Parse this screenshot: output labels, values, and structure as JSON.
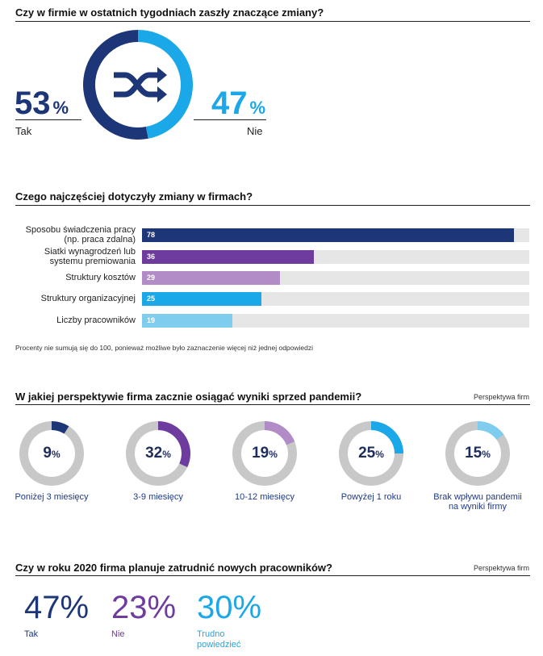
{
  "section1": {
    "title": "Czy w firmie w ostatnich tygodniach zaszły znaczące zmiany?",
    "left": {
      "value": "53",
      "unit": "%",
      "label": "Tak"
    },
    "right": {
      "value": "47",
      "unit": "%",
      "label": "Nie"
    },
    "icon": "shuffle-icon",
    "colors": {
      "dark": "#1c3678",
      "light": "#1aa8e8"
    }
  },
  "section2": {
    "title": "Czego najczęściej dotyczyły zmiany w firmach?",
    "footnote": "Procenty nie sumują się do 100, ponieważ możliwe było zaznaczenie więcej niż jednej odpowiedzi"
  },
  "section3": {
    "title": "W jakiej perspektywie firma zacznie osiągać wyniki sprzed pandemii?",
    "note": "Perspektywa firm"
  },
  "section4": {
    "title": "Czy w roku 2020 firma planuje zatrudnić nowych pracowników?",
    "note": "Perspektywa firm",
    "items": [
      {
        "value": "47%",
        "label": "Tak",
        "color": "#1c3678"
      },
      {
        "value": "23%",
        "label": "Nie",
        "color": "#6e3b9e"
      },
      {
        "value": "30%",
        "label": "Trudno powiedzieć",
        "color": "#1aa8e8"
      }
    ]
  },
  "chart_data": [
    {
      "type": "bar",
      "orientation": "horizontal",
      "categories": [
        "Sposobu świadczenia pracy (np. praca zdalna)",
        "Siatki wynagrodzeń lub systemu premiowania",
        "Struktury kosztów",
        "Struktury organizacyjnej",
        "Liczby pracowników"
      ],
      "values": [
        78,
        36,
        29,
        25,
        19
      ],
      "value_labels": [
        "78",
        "36",
        "29",
        "25",
        "19"
      ],
      "colors": [
        "#1c3678",
        "#6e3b9e",
        "#b28cc6",
        "#1aa8e8",
        "#7fcdee"
      ],
      "xlim": [
        0,
        80
      ]
    },
    {
      "type": "pie",
      "style": "donut",
      "categories": [
        "Poniżej 3 miesięcy",
        "3-9 miesięcy",
        "10-12 miesięcy",
        "Powyżej 1 roku",
        "Brak wpływu pandemii na wyniki firmy"
      ],
      "values": [
        9,
        32,
        19,
        25,
        15
      ],
      "value_labels": [
        "9",
        "32",
        "19",
        "25",
        "15"
      ],
      "unit": "%",
      "colors": [
        "#1c3678",
        "#6e3b9e",
        "#b28cc6",
        "#1aa8e8",
        "#7fcdee"
      ]
    }
  ]
}
